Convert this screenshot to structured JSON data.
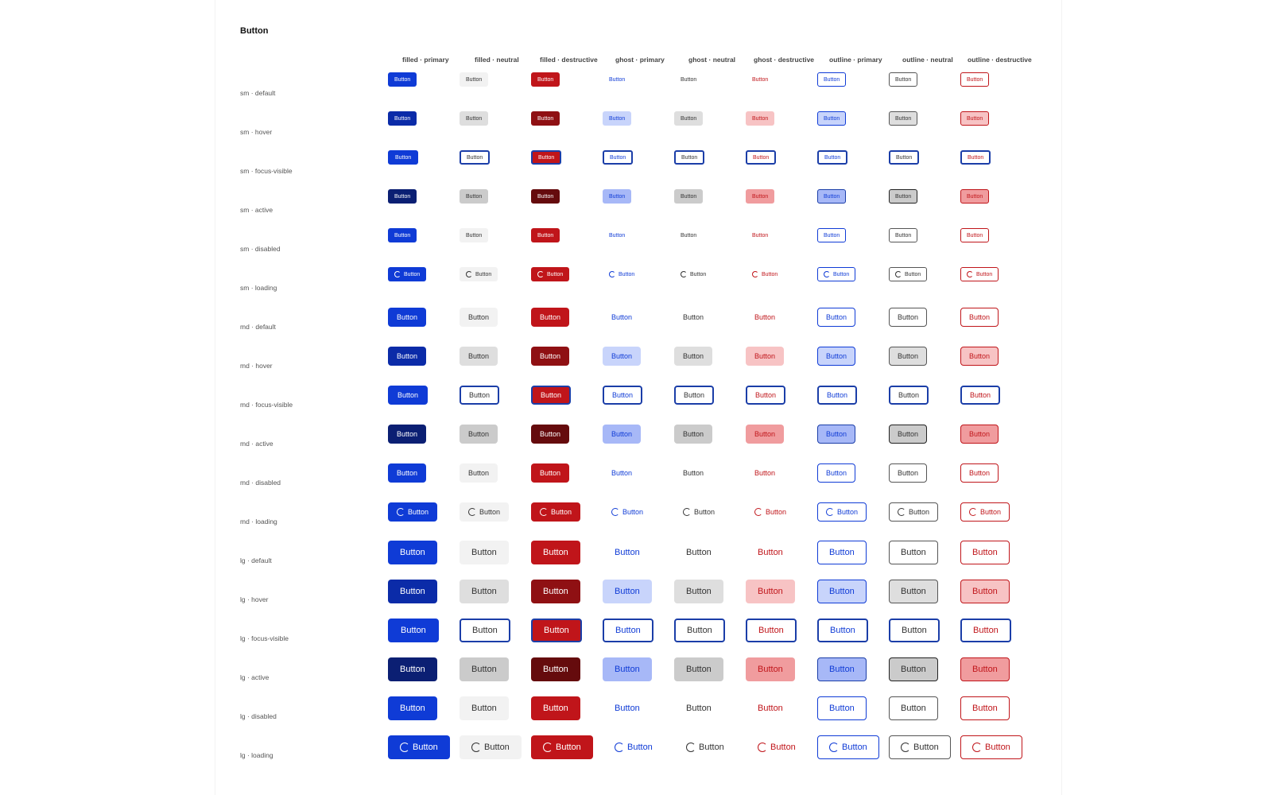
{
  "title": "Button",
  "button_label": "Button",
  "columns": [
    {
      "label": "filled · primary",
      "variant": "filled",
      "tone": "primary"
    },
    {
      "label": "filled · neutral",
      "variant": "filled",
      "tone": "neutral"
    },
    {
      "label": "filled · destructive",
      "variant": "filled",
      "tone": "destructive"
    },
    {
      "label": "ghost · primary",
      "variant": "ghost",
      "tone": "primary"
    },
    {
      "label": "ghost · neutral",
      "variant": "ghost",
      "tone": "neutral"
    },
    {
      "label": "ghost · destructive",
      "variant": "ghost",
      "tone": "destructive"
    },
    {
      "label": "outline · primary",
      "variant": "outline",
      "tone": "primary"
    },
    {
      "label": "outline · neutral",
      "variant": "outline",
      "tone": "neutral"
    },
    {
      "label": "outline · destructive",
      "variant": "outline",
      "tone": "destructive"
    }
  ],
  "rows": [
    {
      "label": "sm · default",
      "size": "sm",
      "state": "default"
    },
    {
      "label": "sm · hover",
      "size": "sm",
      "state": "hover"
    },
    {
      "label": "sm · focus-visible",
      "size": "sm",
      "state": "focus-visible"
    },
    {
      "label": "sm · active",
      "size": "sm",
      "state": "active"
    },
    {
      "label": "sm · disabled",
      "size": "sm",
      "state": "disabled"
    },
    {
      "label": "sm · loading",
      "size": "sm",
      "state": "loading"
    },
    {
      "label": "md · default",
      "size": "md",
      "state": "default"
    },
    {
      "label": "md · hover",
      "size": "md",
      "state": "hover"
    },
    {
      "label": "md · focus-visible",
      "size": "md",
      "state": "focus-visible"
    },
    {
      "label": "md · active",
      "size": "md",
      "state": "active"
    },
    {
      "label": "md · disabled",
      "size": "md",
      "state": "disabled"
    },
    {
      "label": "md · loading",
      "size": "md",
      "state": "loading"
    },
    {
      "label": "lg · default",
      "size": "lg",
      "state": "default"
    },
    {
      "label": "lg · hover",
      "size": "lg",
      "state": "hover"
    },
    {
      "label": "lg · focus-visible",
      "size": "lg",
      "state": "focus-visible"
    },
    {
      "label": "lg · active",
      "size": "lg",
      "state": "active"
    },
    {
      "label": "lg · disabled",
      "size": "lg",
      "state": "disabled"
    },
    {
      "label": "lg · loading",
      "size": "lg",
      "state": "loading"
    }
  ],
  "colors": {
    "primary": {
      "base": "#0f3bd6",
      "hover": "#0b2ba8",
      "active": "#0b1f73",
      "tint_hover": "#c8d4fb",
      "tint_active": "#a7b8f7"
    },
    "neutral": {
      "base": "#f2f2f2",
      "hover": "#dedede",
      "active": "#cbcbcb",
      "text": "#333333",
      "border": "#555555"
    },
    "destructive": {
      "base": "#c0151a",
      "hover": "#8f1013",
      "active": "#650b0d",
      "tint_hover": "#f7c3c4",
      "tint_active": "#f09c9e"
    },
    "focus_ring": "#1b3ea8",
    "icon": "spinner-icon"
  }
}
